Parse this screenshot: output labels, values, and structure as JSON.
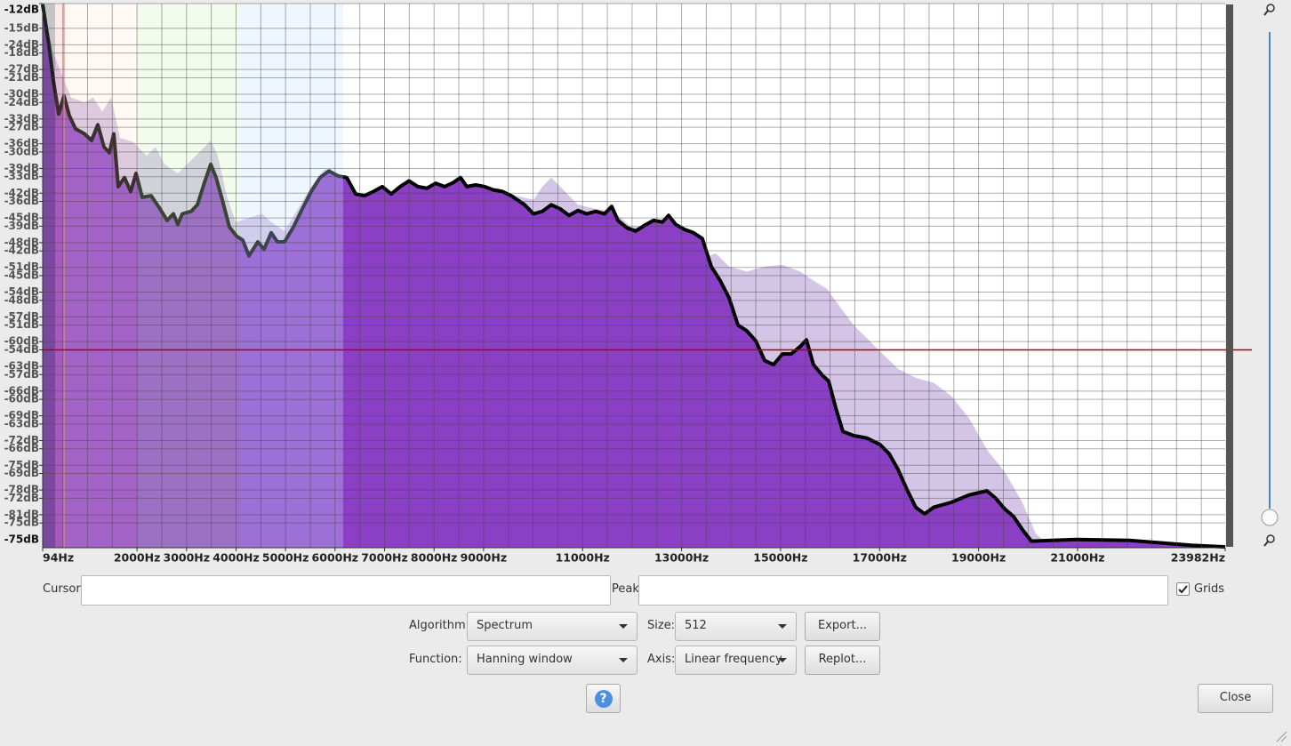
{
  "chart_data": {
    "type": "area",
    "xlim": [
      94,
      23982
    ],
    "ylim": [
      -78,
      -12
    ],
    "y2lim": [
      -85,
      -19
    ],
    "grid": true,
    "xticks": [
      {
        "value": 94,
        "label": "94Hz"
      },
      {
        "value": 2000,
        "label": "2000Hz"
      },
      {
        "value": 3000,
        "label": "3000Hz"
      },
      {
        "value": 4000,
        "label": "4000Hz"
      },
      {
        "value": 5000,
        "label": "5000Hz"
      },
      {
        "value": 6000,
        "label": "6000Hz"
      },
      {
        "value": 7000,
        "label": "7000Hz"
      },
      {
        "value": 8000,
        "label": "8000Hz"
      },
      {
        "value": 9000,
        "label": "9000Hz"
      },
      {
        "value": 11000,
        "label": "11000Hz"
      },
      {
        "value": 13000,
        "label": "13000Hz"
      },
      {
        "value": 15000,
        "label": "15000Hz"
      },
      {
        "value": 17000,
        "label": "17000Hz"
      },
      {
        "value": 19000,
        "label": "19000Hz"
      },
      {
        "value": 21000,
        "label": "21000Hz"
      },
      {
        "value": 23982,
        "label": "23982Hz"
      }
    ],
    "xgrid": [
      500,
      1000,
      1500,
      2000,
      2500,
      3000,
      3500,
      4000,
      4500,
      5000,
      5500,
      6000,
      6500,
      7000,
      7500,
      8000,
      8500,
      9000,
      9500,
      10000,
      10500,
      11000,
      11500,
      12000,
      12500,
      13000,
      13500,
      14000,
      14500,
      15000,
      15500,
      16000,
      16500,
      17000,
      17500,
      18000,
      18500,
      19000,
      19500,
      20000,
      20500,
      21000,
      21500,
      22000,
      22500,
      23000,
      23500
    ],
    "yticks": [
      {
        "value": -12,
        "label": "-12dB"
      },
      {
        "value": -15,
        "label": "-15dB"
      },
      {
        "value": -18,
        "label": "-18dB"
      },
      {
        "value": -21,
        "label": "-21dB"
      },
      {
        "value": -24,
        "label": "-24dB"
      },
      {
        "value": -27,
        "label": "-27dB"
      },
      {
        "value": -30,
        "label": "-30dB"
      },
      {
        "value": -33,
        "label": "-33dB"
      },
      {
        "value": -36,
        "label": "-36dB"
      },
      {
        "value": -39,
        "label": "-39dB"
      },
      {
        "value": -42,
        "label": "-42dB"
      },
      {
        "value": -45,
        "label": "-45dB"
      },
      {
        "value": -48,
        "label": "-48dB"
      },
      {
        "value": -51,
        "label": "-51dB"
      },
      {
        "value": -54,
        "label": "-54dB"
      },
      {
        "value": -57,
        "label": "-57dB"
      },
      {
        "value": -60,
        "label": "-60dB"
      },
      {
        "value": -63,
        "label": "-63dB"
      },
      {
        "value": -66,
        "label": "-66dB"
      },
      {
        "value": -69,
        "label": "-69dB"
      },
      {
        "value": -72,
        "label": "-72dB"
      },
      {
        "value": -75,
        "label": "-75dB"
      }
    ],
    "y2ticks": [
      {
        "value": -24,
        "label": "-24dB"
      },
      {
        "value": -27,
        "label": "-27dB"
      },
      {
        "value": -30,
        "label": "-30dB"
      },
      {
        "value": -33,
        "label": "-33dB"
      },
      {
        "value": -36,
        "label": "-36dB"
      },
      {
        "value": -39,
        "label": "-39dB"
      },
      {
        "value": -42,
        "label": "-42dB"
      },
      {
        "value": -45,
        "label": "-45dB"
      },
      {
        "value": -48,
        "label": "-48dB"
      },
      {
        "value": -51,
        "label": "-51dB"
      },
      {
        "value": -54,
        "label": "-54dB"
      },
      {
        "value": -57,
        "label": "-57dB"
      },
      {
        "value": -60,
        "label": "-60dB"
      },
      {
        "value": -63,
        "label": "-63dB"
      },
      {
        "value": -66,
        "label": "-66dB"
      },
      {
        "value": -69,
        "label": "-69dB"
      },
      {
        "value": -72,
        "label": "-72dB"
      },
      {
        "value": -75,
        "label": "-75dB"
      },
      {
        "value": -78,
        "label": "-78dB"
      },
      {
        "value": -81,
        "label": "-81dB"
      }
    ],
    "y_bottom_label": "-75dB",
    "hline": -54,
    "hline_color": "#b30000",
    "series": [
      {
        "color": "#d4c5e6",
        "x": [
          94,
          310,
          489,
          669,
          938,
          1118,
          1297,
          1477,
          1657,
          1926,
          2195,
          2375,
          2555,
          2824,
          3093,
          3363,
          3488,
          3632,
          3812,
          3991,
          4261,
          4530,
          4710,
          4979,
          5248,
          5518,
          5788,
          6057,
          6416,
          6775,
          7134,
          7494,
          7853,
          8212,
          8571,
          8930,
          9289,
          9649,
          10008,
          10188,
          10367,
          10547,
          10906,
          11265,
          11624,
          11983,
          12343,
          12612,
          12882,
          13151,
          13420,
          13690,
          13959,
          14318,
          14678,
          15037,
          15396,
          15665,
          15935,
          16204,
          16474,
          16743,
          17012,
          17372,
          17731,
          18090,
          18449,
          18808,
          19168,
          19527,
          19886,
          20155,
          20335,
          23982
        ],
        "values": [
          -12.1,
          -18.0,
          -20.7,
          -23.4,
          -24.0,
          -23.4,
          -25.1,
          -23.4,
          -28.3,
          -28.8,
          -30.5,
          -29.4,
          -31.5,
          -32.6,
          -31.0,
          -29.4,
          -28.6,
          -30.5,
          -35.3,
          -38.5,
          -38.0,
          -37.5,
          -38.5,
          -39.6,
          -36.9,
          -34.2,
          -32.1,
          -32.6,
          -34.8,
          -35.8,
          -36.9,
          -35.8,
          -35.8,
          -35.3,
          -36.4,
          -34.4,
          -34.4,
          -35.3,
          -35.8,
          -34.2,
          -33.1,
          -34.2,
          -36.4,
          -36.9,
          -37.2,
          -39.1,
          -39.1,
          -41.2,
          -41.8,
          -42.3,
          -42.9,
          -42.3,
          -43.9,
          -44.5,
          -43.9,
          -43.7,
          -44.5,
          -45.6,
          -46.6,
          -48.8,
          -51.0,
          -52.6,
          -54.2,
          -56.3,
          -57.4,
          -58.0,
          -59.6,
          -62.3,
          -66.1,
          -68.8,
          -72.5,
          -76.3,
          -77.2,
          -77.8
        ]
      },
      {
        "color": "#8a3fc5",
        "outline": "#000000",
        "x": [
          94,
          220,
          310,
          417,
          525,
          633,
          758,
          938,
          1082,
          1207,
          1333,
          1441,
          1531,
          1621,
          1746,
          1872,
          1980,
          2105,
          2285,
          2465,
          2608,
          2734,
          2824,
          2914,
          3093,
          3219,
          3363,
          3488,
          3596,
          3722,
          3866,
          4009,
          4135,
          4261,
          4440,
          4566,
          4710,
          4835,
          4979,
          5159,
          5338,
          5518,
          5698,
          5877,
          6057,
          6236,
          6416,
          6596,
          6775,
          6955,
          7134,
          7314,
          7494,
          7673,
          7853,
          8032,
          8212,
          8392,
          8535,
          8661,
          8841,
          9020,
          9200,
          9379,
          9559,
          9828,
          10008,
          10188,
          10367,
          10547,
          10726,
          10906,
          11086,
          11265,
          11445,
          11588,
          11714,
          11894,
          12073,
          12253,
          12433,
          12612,
          12738,
          12882,
          13061,
          13241,
          13420,
          13600,
          13780,
          13959,
          14139,
          14318,
          14498,
          14678,
          14857,
          15037,
          15216,
          15396,
          15522,
          15665,
          15845,
          15971,
          16114,
          16258,
          16474,
          16743,
          17012,
          17192,
          17372,
          17551,
          17731,
          17910,
          18090,
          18449,
          18808,
          19168,
          19347,
          19527,
          19706,
          19886,
          20066,
          20964,
          22042,
          23299,
          23982
        ],
        "values": [
          -12.1,
          -17.0,
          -21.3,
          -25.4,
          -23.2,
          -25.6,
          -27.2,
          -27.8,
          -28.6,
          -26.7,
          -29.4,
          -30.1,
          -27.8,
          -34.2,
          -33.1,
          -34.8,
          -32.6,
          -35.5,
          -35.3,
          -36.9,
          -38.3,
          -37.5,
          -38.8,
          -37.5,
          -37.2,
          -36.4,
          -33.7,
          -31.5,
          -33.1,
          -35.8,
          -39.1,
          -40.2,
          -40.7,
          -42.6,
          -40.9,
          -41.8,
          -39.8,
          -40.9,
          -40.9,
          -39.1,
          -36.9,
          -34.8,
          -33.1,
          -32.3,
          -32.9,
          -33.1,
          -35.1,
          -35.3,
          -34.8,
          -34.2,
          -35.1,
          -34.2,
          -33.5,
          -34.2,
          -34.4,
          -33.8,
          -34.2,
          -33.7,
          -33.1,
          -34.2,
          -34.0,
          -34.2,
          -34.6,
          -34.8,
          -35.3,
          -36.4,
          -37.5,
          -37.2,
          -36.4,
          -36.9,
          -37.7,
          -37.1,
          -37.5,
          -37.2,
          -37.5,
          -36.6,
          -38.3,
          -39.2,
          -39.6,
          -38.9,
          -38.3,
          -38.5,
          -37.7,
          -38.8,
          -39.4,
          -39.8,
          -40.5,
          -43.9,
          -45.6,
          -47.7,
          -51.0,
          -51.7,
          -52.9,
          -55.3,
          -55.8,
          -54.5,
          -54.5,
          -53.6,
          -52.8,
          -55.8,
          -57.1,
          -57.8,
          -61.0,
          -63.9,
          -64.4,
          -64.7,
          -65.5,
          -66.6,
          -68.5,
          -70.9,
          -73.1,
          -73.9,
          -73.1,
          -72.5,
          -71.6,
          -71.1,
          -72.0,
          -73.3,
          -74.2,
          -75.8,
          -77.2,
          -77.0,
          -77.1,
          -77.7,
          -77.9
        ]
      }
    ]
  },
  "controls": {
    "cursor_label": "Cursor:",
    "peak_label": "Peak:",
    "grids_label": "Grids",
    "grids_checked": true,
    "algorithm_label": "Algorithm:",
    "algorithm": "Spectrum",
    "size_label": "Size:",
    "size": "512",
    "export": "Export...",
    "function_label": "Function:",
    "function": "Hanning window",
    "axis_label": "Axis:",
    "axis": "Linear frequency",
    "replot": "Replot...",
    "help": "?",
    "close": "Close"
  }
}
